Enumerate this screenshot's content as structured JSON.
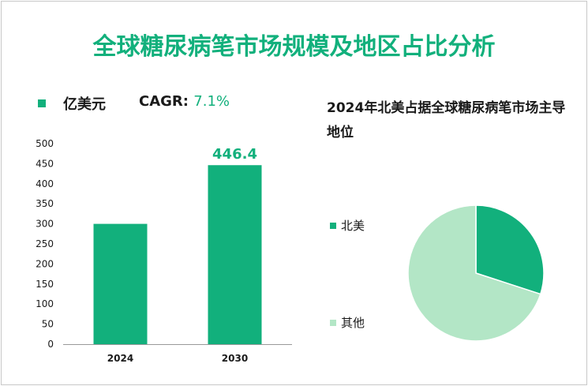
{
  "title": "全球糖尿病笔市场规模及地区占比分析",
  "legend_label": "亿美元",
  "cagr_label": "CAGR:",
  "cagr_value": "7.1%",
  "colors": {
    "accent": "#12b07c",
    "light": "#b3e6c6",
    "axis": "#999999"
  },
  "chart_data": [
    {
      "type": "bar",
      "categories": [
        "2024",
        "2030"
      ],
      "series": [
        {
          "name": "亿美元",
          "values": [
            300,
            446.4
          ]
        }
      ],
      "data_labels": [
        "",
        "446.4"
      ],
      "yticks": [
        "0",
        "50",
        "100",
        "150",
        "200",
        "250",
        "300",
        "350",
        "400",
        "450",
        "500"
      ],
      "ylim": [
        0,
        500
      ],
      "grid": false,
      "legend": "top-left"
    },
    {
      "type": "pie",
      "title": "2024年北美占据全球糖尿病笔市场主导地位",
      "labels": [
        "北美",
        "其他"
      ],
      "values": [
        30,
        70
      ],
      "colors": [
        "#12b07c",
        "#b3e6c6"
      ],
      "legend": "left"
    }
  ]
}
